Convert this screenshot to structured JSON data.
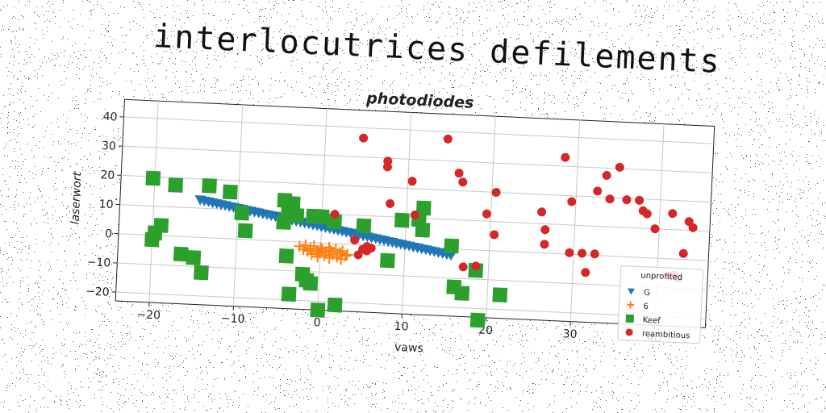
{
  "supertitle": "interlocutrices defilements",
  "chart_data": {
    "type": "scatter",
    "title": "photodiodes",
    "xlabel": "vaws",
    "ylabel": "laserwort",
    "xlim": [
      -24,
      46
    ],
    "ylim": [
      -23,
      46
    ],
    "xticks": [
      -20,
      -10,
      0,
      10,
      20,
      30,
      40
    ],
    "yticks": [
      -20,
      -10,
      0,
      10,
      20,
      30,
      40
    ],
    "xtick_labels": [
      "−20",
      "−10",
      "0",
      "10",
      "20",
      "30",
      "40"
    ],
    "ytick_labels": [
      "−20",
      "−10",
      "0",
      "10",
      "20",
      "30",
      "40"
    ],
    "grid": true,
    "legend": {
      "title": "unprofited",
      "placement": "lower-right"
    },
    "series": [
      {
        "name": "G",
        "marker": "triangle-down",
        "color": "#1f77b4",
        "points": [
          [
            -14.5,
            12.9
          ],
          [
            -14,
            12.6
          ],
          [
            -13.5,
            12.4
          ],
          [
            -13,
            12.1
          ],
          [
            -12.5,
            11.9
          ],
          [
            -12,
            11.6
          ],
          [
            -11.5,
            11.4
          ],
          [
            -11,
            11.1
          ],
          [
            -10.5,
            10.9
          ],
          [
            -10,
            10.6
          ],
          [
            -9.5,
            10.4
          ],
          [
            -9,
            10.1
          ],
          [
            -8.5,
            9.9
          ],
          [
            -8,
            9.6
          ],
          [
            -7.5,
            9.4
          ],
          [
            -7,
            9.1
          ],
          [
            -6.5,
            8.9
          ],
          [
            -6,
            8.6
          ],
          [
            -5.5,
            8.4
          ],
          [
            -5,
            8.1
          ],
          [
            -4.5,
            7.9
          ],
          [
            -4,
            7.6
          ],
          [
            -3.5,
            7.4
          ],
          [
            -3,
            7.1
          ],
          [
            -2.5,
            6.9
          ],
          [
            -2,
            6.6
          ],
          [
            -1.5,
            6.4
          ],
          [
            -1,
            6.1
          ],
          [
            -0.5,
            5.9
          ],
          [
            0,
            5.6
          ],
          [
            0.5,
            5.4
          ],
          [
            1,
            5.1
          ],
          [
            1.5,
            4.9
          ],
          [
            2,
            4.6
          ],
          [
            2.5,
            4.4
          ],
          [
            3,
            4.1
          ],
          [
            3.5,
            3.9
          ],
          [
            4,
            3.6
          ],
          [
            4.5,
            3.4
          ],
          [
            5,
            3.1
          ],
          [
            5.5,
            2.9
          ],
          [
            6,
            2.6
          ],
          [
            6.5,
            2.4
          ],
          [
            7,
            2.1
          ],
          [
            7.5,
            1.9
          ],
          [
            8,
            1.6
          ],
          [
            8.5,
            1.4
          ],
          [
            9,
            1.1
          ],
          [
            9.5,
            0.9
          ],
          [
            10,
            0.6
          ],
          [
            10.5,
            0.4
          ],
          [
            11,
            0.1
          ],
          [
            11.5,
            -0.1
          ],
          [
            12,
            -0.4
          ],
          [
            12.5,
            -0.6
          ],
          [
            13,
            -0.9
          ],
          [
            13.5,
            -1.1
          ],
          [
            14,
            -1.4
          ],
          [
            14.5,
            -1.6
          ],
          [
            15,
            -1.9
          ],
          [
            15.5,
            -2.1
          ]
        ]
      },
      {
        "name": "6",
        "marker": "plus",
        "color": "#ff7f0e",
        "points": [
          [
            -2.5,
            -1.5
          ],
          [
            -2,
            -2.5
          ],
          [
            -1.8,
            -1
          ],
          [
            -1.5,
            -3
          ],
          [
            -1.2,
            -2
          ],
          [
            -1,
            -4
          ],
          [
            -0.8,
            -1.2
          ],
          [
            -0.5,
            -2.8
          ],
          [
            -0.2,
            -3.5
          ],
          [
            0,
            -1.8
          ],
          [
            0.2,
            -2.3
          ],
          [
            0.5,
            -4.2
          ],
          [
            0.7,
            -3
          ],
          [
            1,
            -1.5
          ],
          [
            1.2,
            -2.6
          ],
          [
            1.5,
            -3.8
          ],
          [
            1.8,
            -2
          ],
          [
            2,
            -4.5
          ],
          [
            2.3,
            -3.2
          ],
          [
            2.6,
            -2.5
          ],
          [
            3,
            -4
          ],
          [
            3.2,
            -3.6
          ],
          [
            -0.3,
            -4.8
          ],
          [
            1.1,
            -5
          ],
          [
            2.5,
            -5.2
          ]
        ]
      },
      {
        "name": "Keef",
        "marker": "square",
        "color": "#2ca02c",
        "points": [
          [
            -20,
            -1.5
          ],
          [
            -19.7,
            0.8
          ],
          [
            -19,
            3.5
          ],
          [
            -20.2,
            19.5
          ],
          [
            -17.5,
            17.5
          ],
          [
            -16.5,
            -6
          ],
          [
            -15,
            -7
          ],
          [
            -14,
            -12
          ],
          [
            -13.5,
            17.8
          ],
          [
            -11,
            16
          ],
          [
            -9.5,
            9
          ],
          [
            -9,
            3
          ],
          [
            -4.5,
            14
          ],
          [
            -4,
            10
          ],
          [
            -4.5,
            6.5
          ],
          [
            -4,
            -5
          ],
          [
            -3.5,
            13
          ],
          [
            -3,
            9
          ],
          [
            -3.5,
            -18
          ],
          [
            -2,
            -11
          ],
          [
            -1,
            9
          ],
          [
            -1.5,
            -13
          ],
          [
            -1,
            -14
          ],
          [
            0,
            9
          ],
          [
            0,
            -23
          ],
          [
            1.5,
            7.5
          ],
          [
            2,
            -21
          ],
          [
            5,
            6.5
          ],
          [
            8,
            -5
          ],
          [
            9.5,
            9
          ],
          [
            11.5,
            9.5
          ],
          [
            12,
            13.5
          ],
          [
            12,
            6
          ],
          [
            15.5,
            1
          ],
          [
            16,
            -13
          ],
          [
            17,
            -15
          ],
          [
            18.5,
            -7
          ],
          [
            19,
            -24
          ],
          [
            21.5,
            -15
          ]
        ]
      },
      {
        "name": "reambitious",
        "marker": "circle",
        "color": "#d62728",
        "points": [
          [
            4.5,
            36.5
          ],
          [
            14.5,
            37.5
          ],
          [
            7.5,
            29
          ],
          [
            7.5,
            27
          ],
          [
            10.5,
            22.5
          ],
          [
            16,
            26
          ],
          [
            16.5,
            23
          ],
          [
            19.5,
            12.5
          ],
          [
            20.5,
            20
          ],
          [
            17,
            -6
          ],
          [
            18.5,
            -5.5
          ],
          [
            20.5,
            5.5
          ],
          [
            26,
            14
          ],
          [
            26.5,
            8
          ],
          [
            26.5,
            3
          ],
          [
            28.5,
            33
          ],
          [
            29.5,
            18
          ],
          [
            29.5,
            0.5
          ],
          [
            31,
            0.5
          ],
          [
            31.5,
            -6
          ],
          [
            32.5,
            0.5
          ],
          [
            32.5,
            22
          ],
          [
            33.5,
            27.5
          ],
          [
            34,
            19.5
          ],
          [
            35,
            30.5
          ],
          [
            36,
            19.5
          ],
          [
            37.5,
            19.5
          ],
          [
            38,
            16
          ],
          [
            38.5,
            15
          ],
          [
            39.5,
            10
          ],
          [
            41.5,
            15.5
          ],
          [
            41.5,
            -6
          ],
          [
            42,
            -5.5
          ],
          [
            42.5,
            -6.5
          ],
          [
            43,
            2
          ],
          [
            43.5,
            13
          ],
          [
            44,
            11
          ],
          [
            8,
            14.5
          ],
          [
            11,
            11
          ],
          [
            1.5,
            10
          ],
          [
            4,
            1.5
          ],
          [
            5,
            -1.5
          ],
          [
            5.5,
            -0.5
          ],
          [
            5.5,
            -2
          ],
          [
            6,
            -1
          ],
          [
            4.5,
            -3.5
          ]
        ]
      }
    ]
  }
}
